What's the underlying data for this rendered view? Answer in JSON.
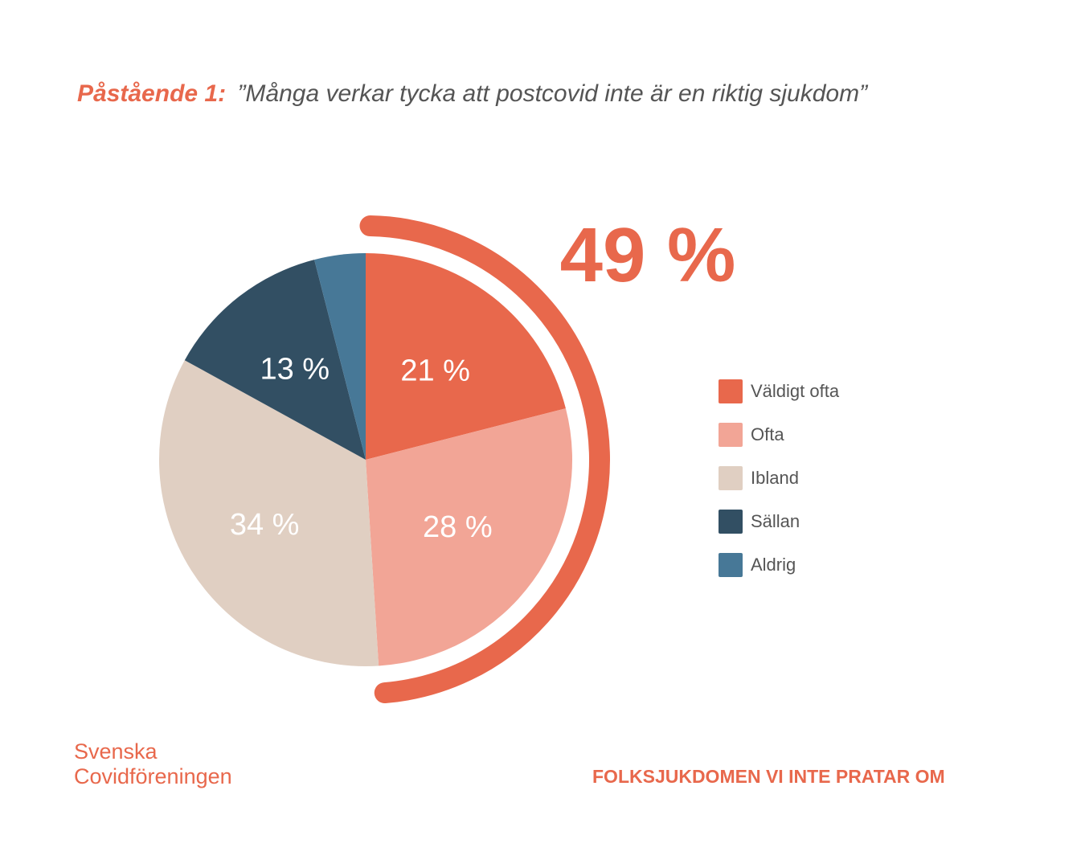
{
  "header": {
    "lead": "Påstående 1:",
    "quote": "”Många verkar tycka att postcovid inte är en riktig sjukdom”"
  },
  "chart_data": {
    "type": "pie",
    "categories": [
      "Väldigt ofta",
      "Ofta",
      "Ibland",
      "Sällan",
      "Aldrig"
    ],
    "values": [
      21,
      28,
      34,
      13,
      4
    ],
    "data_labels": [
      "21 %",
      "28 %",
      "34 %",
      "13 %",
      ""
    ],
    "colors": [
      "#e8684c",
      "#f2a596",
      "#e0cfc2",
      "#324f63",
      "#477897"
    ],
    "legend_position": "right",
    "highlight": {
      "label": "49 %",
      "covers": [
        "Väldigt ofta",
        "Ofta"
      ],
      "color": "#e8684c"
    }
  },
  "footer": {
    "logo_line1": "Svenska",
    "logo_line2": "Covidföreningen",
    "tagline": "FOLKSJUKDOMEN VI INTE PRATAR OM"
  }
}
